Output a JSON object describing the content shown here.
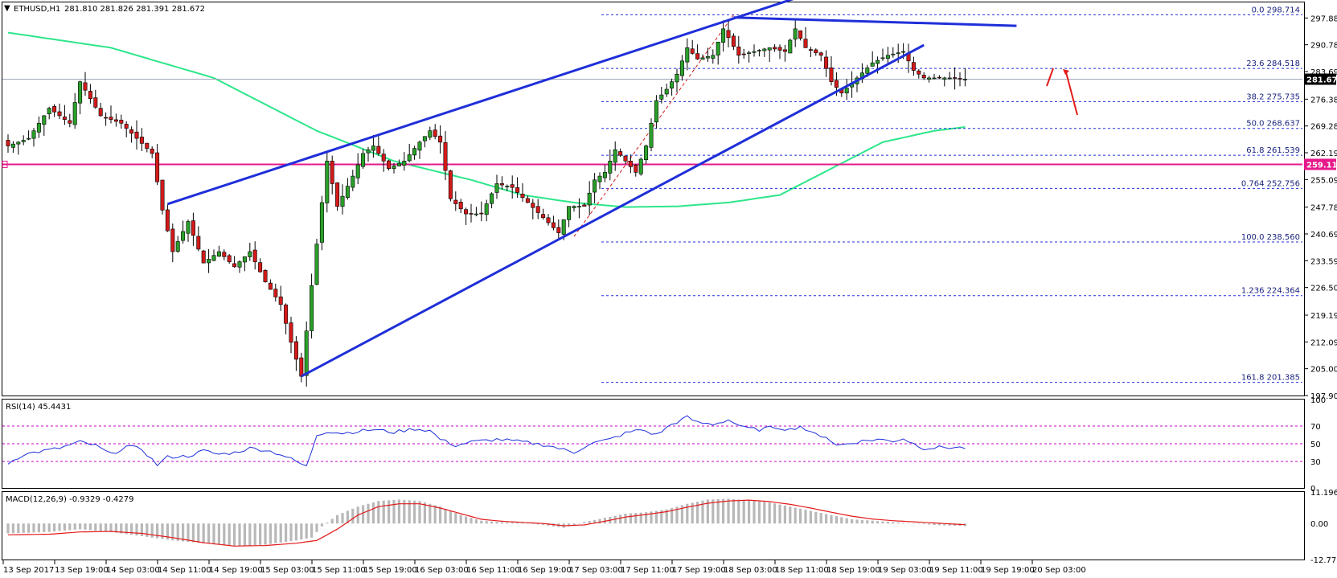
{
  "header": {
    "symbol": "ETHUSD,H1",
    "ohlc": "281.810 281.826 281.391 281.672"
  },
  "colors": {
    "trend": "#1f2fd9",
    "ma": "#2ee68a",
    "support": "#e6198a",
    "fib": "#1f2fd9",
    "bull": "#2aa02a",
    "bear": "#d41a1a",
    "rsi": "#1f2fd9",
    "macd_hist": "#b8b8b8",
    "macd_signal": "#e31a1a",
    "arrow": "#e31a1a",
    "level": "#e6198a"
  },
  "chart_data": [
    {
      "type": "candlestick",
      "title": "ETHUSD,H1 281.810 281.826 281.391 281.672",
      "ylim": [
        197.905,
        302.0
      ],
      "y_ticks": [
        "297.880",
        "290.785",
        "283.690",
        "276.380",
        "269.285",
        "262.190",
        "255.095",
        "247.785",
        "240.690",
        "233.595",
        "226.500",
        "219.190",
        "212.095",
        "205.000",
        "197.905"
      ],
      "x_ticks": [
        "13 Sep 2017",
        "13 Sep 19:00",
        "14 Sep 03:00",
        "14 Sep 11:00",
        "14 Sep 19:00",
        "15 Sep 03:00",
        "15 Sep 11:00",
        "15 Sep 19:00",
        "16 Sep 03:00",
        "16 Sep 11:00",
        "16 Sep 19:00",
        "17 Sep 03:00",
        "17 Sep 11:00",
        "17 Sep 19:00",
        "18 Sep 03:00",
        "18 Sep 11:00",
        "18 Sep 19:00",
        "19 Sep 03:00",
        "19 Sep 11:00",
        "19 Sep 19:00",
        "20 Sep 03:00"
      ],
      "current_price": "281.672",
      "support_level": "259.116",
      "price_anchors": [
        [
          0,
          264
        ],
        [
          4,
          266
        ],
        [
          8,
          274
        ],
        [
          12,
          270
        ],
        [
          14,
          281
        ],
        [
          18,
          272
        ],
        [
          22,
          270
        ],
        [
          25,
          266
        ],
        [
          28,
          262
        ],
        [
          30,
          247
        ],
        [
          32,
          236
        ],
        [
          35,
          244
        ],
        [
          38,
          233
        ],
        [
          41,
          236
        ],
        [
          44,
          232
        ],
        [
          47,
          236
        ],
        [
          50,
          228
        ],
        [
          53,
          222
        ],
        [
          55,
          212
        ],
        [
          57,
          203
        ],
        [
          59,
          227
        ],
        [
          62,
          260
        ],
        [
          64,
          248
        ],
        [
          67,
          256
        ],
        [
          69,
          262
        ],
        [
          71,
          264
        ],
        [
          74,
          258
        ],
        [
          77,
          260
        ],
        [
          80,
          265
        ],
        [
          82,
          268
        ],
        [
          84,
          265
        ],
        [
          86,
          250
        ],
        [
          89,
          246
        ],
        [
          92,
          246
        ],
        [
          95,
          254
        ],
        [
          98,
          253
        ],
        [
          101,
          249
        ],
        [
          104,
          245
        ],
        [
          107,
          241
        ],
        [
          109,
          248
        ],
        [
          112,
          248
        ],
        [
          114,
          255
        ],
        [
          116,
          257
        ],
        [
          118,
          263
        ],
        [
          120,
          260
        ],
        [
          122,
          257
        ],
        [
          124,
          264
        ],
        [
          126,
          276
        ],
        [
          128,
          279
        ],
        [
          130,
          283
        ],
        [
          132,
          290
        ],
        [
          134,
          287
        ],
        [
          137,
          288
        ],
        [
          139,
          295
        ],
        [
          142,
          288
        ],
        [
          145,
          289
        ],
        [
          148,
          290
        ],
        [
          151,
          289
        ],
        [
          153,
          295
        ],
        [
          155,
          290
        ],
        [
          158,
          288
        ],
        [
          160,
          281
        ],
        [
          162,
          278
        ],
        [
          165,
          282
        ],
        [
          168,
          286
        ],
        [
          171,
          288
        ],
        [
          174,
          289
        ],
        [
          176,
          284
        ],
        [
          178,
          282
        ],
        [
          181,
          282
        ],
        [
          184,
          282
        ],
        [
          186,
          281.672
        ]
      ],
      "ma200": [
        [
          0,
          294
        ],
        [
          20,
          290
        ],
        [
          40,
          282
        ],
        [
          60,
          268
        ],
        [
          75,
          260
        ],
        [
          90,
          255
        ],
        [
          100,
          251
        ],
        [
          110,
          249
        ],
        [
          120,
          247.8
        ],
        [
          130,
          248
        ],
        [
          140,
          249
        ],
        [
          150,
          251
        ],
        [
          160,
          258
        ],
        [
          170,
          265
        ],
        [
          180,
          268
        ],
        [
          186,
          269
        ]
      ],
      "rising_wedge": {
        "lower": [
          [
            57,
            203
          ],
          [
            178,
            290.7
          ]
        ],
        "upper": [
          [
            31,
            248.6
          ],
          [
            155,
            304
          ]
        ]
      },
      "descending_line": [
        [
          141,
          298
        ],
        [
          196,
          295.8
        ]
      ],
      "fib_levels": [
        {
          "label": "0.0  298.714",
          "price": 298.714
        },
        {
          "label": "23.6  284.518",
          "price": 284.518
        },
        {
          "label": "38.2  275.735",
          "price": 275.735
        },
        {
          "label": "50.0  268.637",
          "price": 268.637
        },
        {
          "label": "61.8  261.539",
          "price": 261.539
        },
        {
          "label": "0.764  252.756",
          "price": 252.756
        },
        {
          "label": "100.0  238.560",
          "price": 238.56
        },
        {
          "label": "1.236  224.364",
          "price": 224.364
        },
        {
          "label": "161.8  201.385",
          "price": 201.385
        }
      ],
      "fib_retracement": [
        [
          110,
          240
        ],
        [
          141,
          298.7
        ]
      ]
    },
    {
      "type": "line",
      "title": "RSI(14) 45.4431",
      "ylim": [
        0,
        100
      ],
      "y_ticks": [
        "100",
        "70",
        "50",
        "30",
        "0"
      ],
      "levels": [
        70,
        50,
        30
      ],
      "anchors": [
        [
          0,
          28
        ],
        [
          3,
          38
        ],
        [
          7,
          42
        ],
        [
          10,
          45
        ],
        [
          14,
          52
        ],
        [
          17,
          48
        ],
        [
          20,
          38
        ],
        [
          23,
          47
        ],
        [
          26,
          44
        ],
        [
          29,
          26
        ],
        [
          31,
          35
        ],
        [
          35,
          36
        ],
        [
          38,
          42
        ],
        [
          41,
          38
        ],
        [
          44,
          40
        ],
        [
          47,
          45
        ],
        [
          50,
          43
        ],
        [
          53,
          38
        ],
        [
          56,
          30
        ],
        [
          58,
          24
        ],
        [
          60,
          60
        ],
        [
          62,
          64
        ],
        [
          65,
          62
        ],
        [
          68,
          64
        ],
        [
          71,
          66
        ],
        [
          75,
          63
        ],
        [
          79,
          67
        ],
        [
          82,
          65
        ],
        [
          84,
          55
        ],
        [
          87,
          48
        ],
        [
          90,
          52
        ],
        [
          95,
          55
        ],
        [
          100,
          52
        ],
        [
          105,
          48
        ],
        [
          110,
          40
        ],
        [
          113,
          50
        ],
        [
          117,
          55
        ],
        [
          120,
          62
        ],
        [
          123,
          66
        ],
        [
          126,
          60
        ],
        [
          129,
          72
        ],
        [
          132,
          80
        ],
        [
          134,
          74
        ],
        [
          137,
          72
        ],
        [
          140,
          77
        ],
        [
          143,
          68
        ],
        [
          146,
          66
        ],
        [
          149,
          69
        ],
        [
          152,
          66
        ],
        [
          154,
          70
        ],
        [
          156,
          62
        ],
        [
          159,
          58
        ],
        [
          161,
          48
        ],
        [
          163,
          50
        ],
        [
          166,
          53
        ],
        [
          169,
          55
        ],
        [
          172,
          53
        ],
        [
          174,
          56
        ],
        [
          176,
          50
        ],
        [
          178,
          45
        ],
        [
          182,
          46
        ],
        [
          186,
          45.4431
        ]
      ]
    },
    {
      "type": "bar",
      "title": "MACD(12,26,9) -0.9329 -0.4279",
      "ylim": [
        -12.7752,
        11.1963
      ],
      "y_ticks": [
        "11.1963",
        "0.00",
        "-12.7752"
      ],
      "hist_anchors": [
        [
          0,
          -3.5
        ],
        [
          8,
          -3
        ],
        [
          14,
          -2
        ],
        [
          20,
          -3
        ],
        [
          26,
          -4.5
        ],
        [
          32,
          -6
        ],
        [
          38,
          -7
        ],
        [
          44,
          -8
        ],
        [
          50,
          -7.5
        ],
        [
          56,
          -6
        ],
        [
          59,
          -5
        ],
        [
          61,
          -1
        ],
        [
          64,
          3
        ],
        [
          68,
          6
        ],
        [
          72,
          8
        ],
        [
          76,
          8.5
        ],
        [
          80,
          8
        ],
        [
          84,
          6
        ],
        [
          88,
          3
        ],
        [
          92,
          1
        ],
        [
          96,
          0.5
        ],
        [
          100,
          0.2
        ],
        [
          104,
          -0.5
        ],
        [
          108,
          -1.5
        ],
        [
          112,
          0.5
        ],
        [
          116,
          2
        ],
        [
          120,
          3.5
        ],
        [
          124,
          4
        ],
        [
          128,
          5
        ],
        [
          132,
          7
        ],
        [
          136,
          8.5
        ],
        [
          140,
          8.8
        ],
        [
          144,
          8.2
        ],
        [
          148,
          7.5
        ],
        [
          152,
          6
        ],
        [
          156,
          4.5
        ],
        [
          160,
          3
        ],
        [
          164,
          1.5
        ],
        [
          168,
          1
        ],
        [
          172,
          0.5
        ],
        [
          176,
          0
        ],
        [
          180,
          -0.5
        ],
        [
          186,
          -0.9329
        ]
      ],
      "signal_anchors": [
        [
          0,
          -4
        ],
        [
          8,
          -3.8
        ],
        [
          14,
          -3
        ],
        [
          20,
          -2.8
        ],
        [
          26,
          -3.5
        ],
        [
          32,
          -5
        ],
        [
          38,
          -6.8
        ],
        [
          44,
          -8
        ],
        [
          50,
          -7.8
        ],
        [
          56,
          -7
        ],
        [
          60,
          -6
        ],
        [
          64,
          -2
        ],
        [
          68,
          3
        ],
        [
          72,
          6
        ],
        [
          76,
          7
        ],
        [
          80,
          7
        ],
        [
          84,
          5.5
        ],
        [
          88,
          3.5
        ],
        [
          92,
          1.5
        ],
        [
          96,
          0.8
        ],
        [
          100,
          0.4
        ],
        [
          104,
          0
        ],
        [
          108,
          -0.8
        ],
        [
          112,
          -0.5
        ],
        [
          116,
          0.8
        ],
        [
          120,
          2.3
        ],
        [
          124,
          3.2
        ],
        [
          128,
          4.2
        ],
        [
          132,
          5.8
        ],
        [
          136,
          7.2
        ],
        [
          140,
          8
        ],
        [
          144,
          8.3
        ],
        [
          148,
          7.8
        ],
        [
          152,
          6.8
        ],
        [
          156,
          5.5
        ],
        [
          160,
          4
        ],
        [
          164,
          2.6
        ],
        [
          168,
          1.6
        ],
        [
          172,
          1
        ],
        [
          176,
          0.6
        ],
        [
          180,
          0.2
        ],
        [
          186,
          -0.4279
        ]
      ]
    }
  ]
}
